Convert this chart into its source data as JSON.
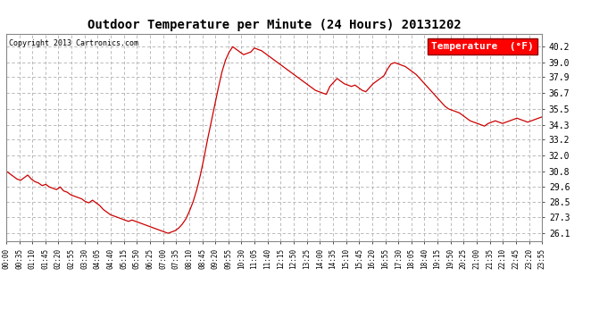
{
  "title": "Outdoor Temperature per Minute (24 Hours) 20131202",
  "copyright": "Copyright 2013 Cartronics.com",
  "legend_label": "Temperature  (°F)",
  "line_color": "#cc0000",
  "background_color": "#ffffff",
  "grid_color": "#b0b0b0",
  "yticks": [
    26.1,
    27.3,
    28.5,
    29.6,
    30.8,
    32.0,
    33.2,
    34.3,
    35.5,
    36.7,
    37.9,
    39.0,
    40.2
  ],
  "ylim": [
    25.5,
    41.2
  ],
  "xtick_labels": [
    "00:00",
    "00:35",
    "01:10",
    "01:45",
    "02:20",
    "02:55",
    "03:30",
    "04:05",
    "04:40",
    "05:15",
    "05:50",
    "06:25",
    "07:00",
    "07:35",
    "08:10",
    "08:45",
    "09:20",
    "09:55",
    "10:30",
    "11:05",
    "11:40",
    "12:15",
    "12:50",
    "13:25",
    "14:00",
    "14:35",
    "15:10",
    "15:45",
    "16:20",
    "16:55",
    "17:30",
    "18:05",
    "18:40",
    "19:15",
    "19:50",
    "20:25",
    "21:00",
    "21:35",
    "22:10",
    "22:45",
    "23:20",
    "23:55"
  ],
  "temperature_data": [
    30.8,
    30.6,
    30.4,
    30.2,
    30.1,
    30.3,
    30.5,
    30.2,
    30.0,
    29.9,
    29.7,
    29.8,
    29.6,
    29.5,
    29.4,
    29.6,
    29.3,
    29.2,
    29.0,
    28.9,
    28.8,
    28.7,
    28.5,
    28.4,
    28.6,
    28.4,
    28.2,
    27.9,
    27.7,
    27.5,
    27.4,
    27.3,
    27.2,
    27.1,
    27.0,
    27.1,
    27.0,
    26.9,
    26.8,
    26.7,
    26.6,
    26.5,
    26.4,
    26.3,
    26.2,
    26.1,
    26.2,
    26.3,
    26.5,
    26.8,
    27.2,
    27.8,
    28.5,
    29.4,
    30.5,
    31.8,
    33.2,
    34.5,
    35.8,
    37.1,
    38.3,
    39.2,
    39.8,
    40.2,
    40.0,
    39.8,
    39.6,
    39.7,
    39.8,
    40.1,
    40.0,
    39.9,
    39.7,
    39.5,
    39.3,
    39.1,
    38.9,
    38.7,
    38.5,
    38.3,
    38.1,
    37.9,
    37.7,
    37.5,
    37.3,
    37.1,
    36.9,
    36.8,
    36.7,
    36.6,
    37.2,
    37.5,
    37.8,
    37.6,
    37.4,
    37.3,
    37.2,
    37.3,
    37.1,
    36.9,
    36.8,
    37.1,
    37.4,
    37.6,
    37.8,
    38.0,
    38.5,
    38.9,
    39.0,
    38.9,
    38.8,
    38.7,
    38.5,
    38.3,
    38.1,
    37.8,
    37.5,
    37.2,
    36.9,
    36.6,
    36.3,
    36.0,
    35.7,
    35.5,
    35.4,
    35.3,
    35.2,
    35.0,
    34.8,
    34.6,
    34.5,
    34.4,
    34.3,
    34.2,
    34.4,
    34.5,
    34.6,
    34.5,
    34.4,
    34.5,
    34.6,
    34.7,
    34.8,
    34.7,
    34.6,
    34.5,
    34.6,
    34.7,
    34.8,
    34.9
  ],
  "figsize": [
    6.9,
    3.75
  ],
  "dpi": 100
}
